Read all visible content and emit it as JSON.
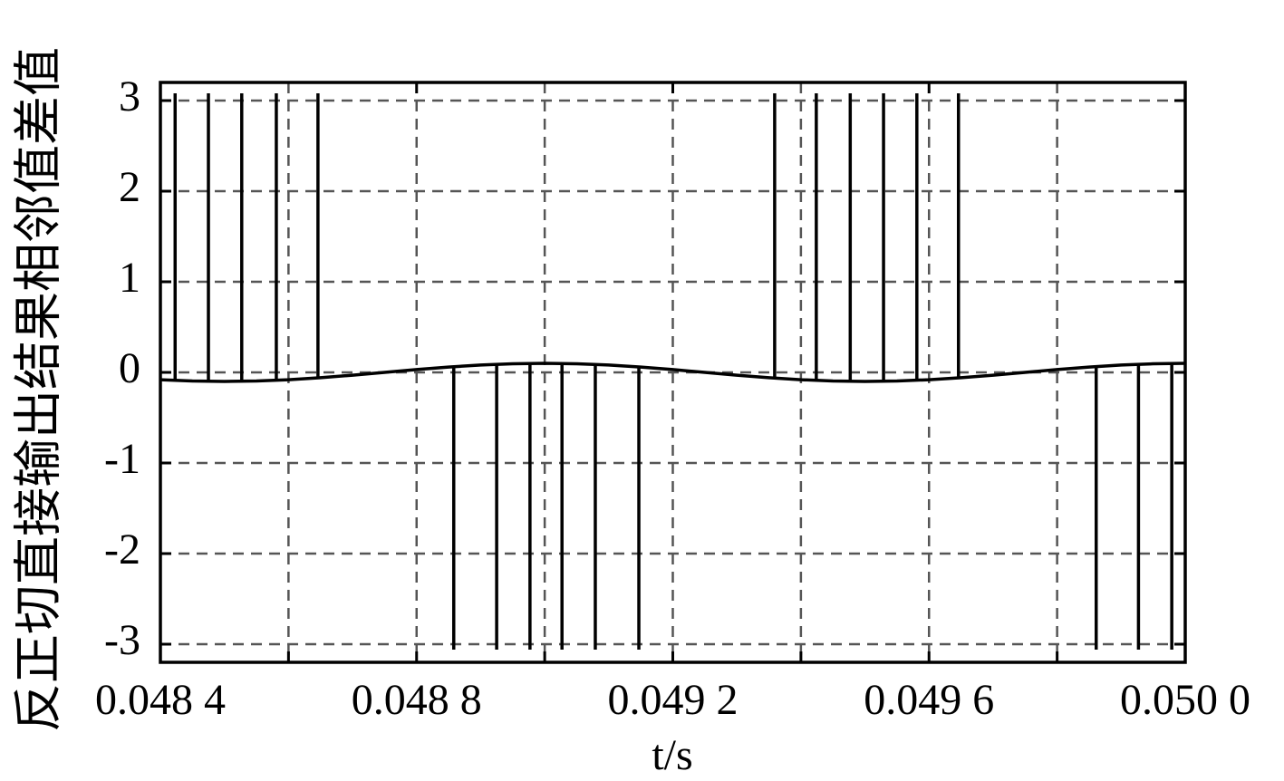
{
  "chart_data": {
    "type": "line",
    "y_label": "反正切直接输出结果相邻值差值",
    "x_label": "t/s",
    "xlim": [
      0.0484,
      0.05
    ],
    "ylim": [
      -3.2,
      3.2
    ],
    "xticks": [
      {
        "value": 0.0484,
        "label": "0.048 4"
      },
      {
        "value": 0.0488,
        "label": "0.048 8"
      },
      {
        "value": 0.0492,
        "label": "0.049 2"
      },
      {
        "value": 0.0496,
        "label": "0.049 6"
      },
      {
        "value": 0.05,
        "label": "0.050 0"
      }
    ],
    "x_minor_grid": [
      0.0486,
      0.049,
      0.0494,
      0.0498
    ],
    "yticks": [
      -3,
      -2,
      -1,
      0,
      1,
      2,
      3
    ],
    "grid": true,
    "series": [
      {
        "color": "#000000",
        "style": "line",
        "x": [
          0.0484,
          0.04845,
          0.0485,
          0.04855,
          0.0486,
          0.04865,
          0.0487,
          0.04875,
          0.0488,
          0.04885,
          0.0489,
          0.04895,
          0.049,
          0.04905,
          0.0491,
          0.04915,
          0.0492,
          0.04925,
          0.0493,
          0.04935,
          0.0494,
          0.04945,
          0.0495,
          0.04955,
          0.0496,
          0.04965,
          0.0497,
          0.04975,
          0.0498,
          0.04985,
          0.0499,
          0.04995,
          0.05
        ],
        "values": [
          -0.081,
          -0.095,
          -0.1,
          -0.095,
          -0.081,
          -0.059,
          -0.031,
          0,
          0.031,
          0.059,
          0.081,
          0.095,
          0.1,
          0.095,
          0.081,
          0.059,
          0.031,
          0,
          -0.031,
          -0.059,
          -0.081,
          -0.095,
          -0.1,
          -0.095,
          -0.081,
          -0.059,
          -0.031,
          0,
          0.031,
          0.059,
          0.081,
          0.095,
          0.1
        ]
      },
      {
        "color": "#000000",
        "style": "stem",
        "x": [
          0.048423,
          0.048475,
          0.048527,
          0.048581,
          0.048646,
          0.048858,
          0.048925,
          0.048977,
          0.049027,
          0.049079,
          0.049147,
          0.049359,
          0.049424,
          0.049477,
          0.049529,
          0.049581,
          0.049646,
          0.049861,
          0.049927,
          0.049979
        ],
        "values": [
          3.08,
          3.08,
          3.08,
          3.08,
          3.08,
          -3.06,
          -3.06,
          -3.06,
          -3.06,
          -3.06,
          -3.06,
          3.08,
          3.08,
          3.08,
          3.08,
          3.08,
          3.08,
          -3.06,
          -3.06,
          -3.06
        ]
      }
    ]
  }
}
